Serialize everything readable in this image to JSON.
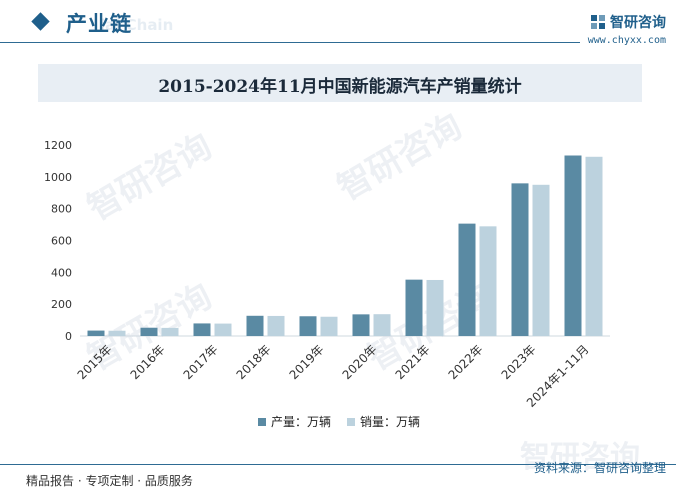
{
  "header": {
    "section_title": "产业链",
    "section_subtitle": "ial Chain",
    "brand_name": "智研咨询",
    "brand_url": "www.chyxx.com"
  },
  "chart_data": {
    "type": "bar",
    "title": "2015-2024年11月中国新能源汽车产销量统计",
    "categories": [
      "2015年",
      "2016年",
      "2017年",
      "2018年",
      "2019年",
      "2020年",
      "2021年",
      "2022年",
      "2023年",
      "2024年1-11月"
    ],
    "series": [
      {
        "name": "产量：万辆",
        "color": "#5a8aa3",
        "values": [
          34,
          52,
          79,
          127,
          124,
          136,
          354,
          706,
          959,
          1134
        ]
      },
      {
        "name": "销量：万辆",
        "color": "#bcd2de",
        "values": [
          33,
          51,
          78,
          126,
          121,
          137,
          352,
          689,
          950,
          1126
        ]
      }
    ],
    "ylim": [
      0,
      1200
    ],
    "yticks": [
      "0",
      "200",
      "400",
      "600",
      "800",
      "1000",
      "1200"
    ],
    "grid": false,
    "legend_position": "bottom"
  },
  "footer": {
    "left_text": "精品报告 · 专项定制 · 品质服务",
    "source_text": "资料来源：智研咨询整理"
  },
  "watermark": {
    "text": "智研咨询"
  }
}
